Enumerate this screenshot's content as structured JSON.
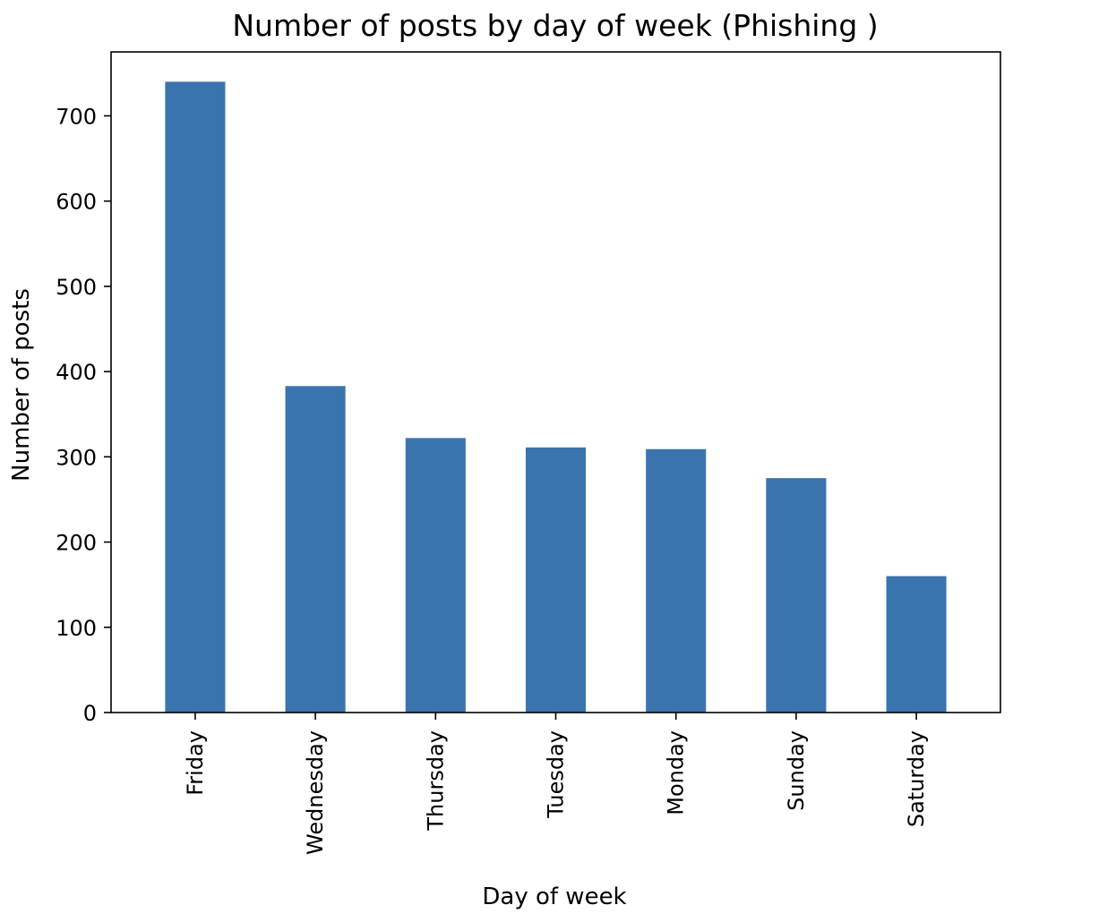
{
  "chart_data": {
    "type": "bar",
    "title": "Number of posts by day of week (Phishing )",
    "xlabel": "Day of week",
    "ylabel": "Number of posts",
    "categories": [
      "Friday",
      "Wednesday",
      "Thursday",
      "Tuesday",
      "Monday",
      "Sunday",
      "Saturday"
    ],
    "values": [
      740,
      383,
      322,
      311,
      309,
      275,
      160
    ],
    "ylim": [
      0,
      775
    ],
    "yticks": [
      0,
      100,
      200,
      300,
      400,
      500,
      600,
      700
    ],
    "grid": false,
    "legend": "none",
    "bar_color": "#3a74ae"
  }
}
